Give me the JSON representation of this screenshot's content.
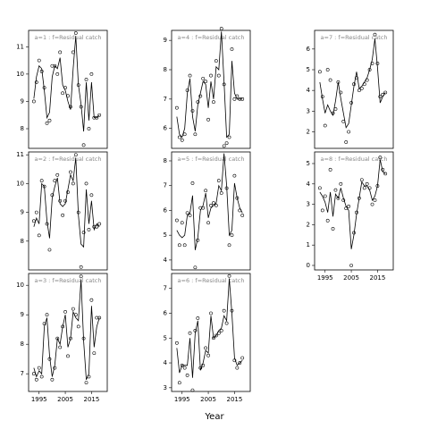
{
  "xlabel": "Year",
  "chart_data": [
    {
      "type": "scatter",
      "title": "a=1 : f=Residual catch",
      "x": [
        1993,
        1994,
        1995,
        1996,
        1997,
        1998,
        1999,
        2000,
        2001,
        2002,
        2003,
        2004,
        2005,
        2006,
        2007,
        2008,
        2009,
        2010,
        2011,
        2012,
        2013,
        2014,
        2015,
        2016,
        2017,
        2018
      ],
      "xlim": [
        1991,
        2021
      ],
      "ylim": [
        7.28,
        11.6
      ],
      "yticks": [
        8,
        9,
        10,
        11
      ],
      "series": [
        {
          "style": "points",
          "color": "#000000",
          "values": [
            9.0,
            9.7,
            10.5,
            10.1,
            9.5,
            8.2,
            8.3,
            10.3,
            10.3,
            10.0,
            10.8,
            9.3,
            9.5,
            9.2,
            8.8,
            10.8,
            11.5,
            9.6,
            8.8,
            7.4,
            9.8,
            8.0,
            10.0,
            8.4,
            8.4,
            8.5
          ]
        },
        {
          "style": "line",
          "color": "#000000",
          "values": [
            9.1,
            9.9,
            10.3,
            10.2,
            9.4,
            8.4,
            8.6,
            9.9,
            10.3,
            10.2,
            10.6,
            9.6,
            9.4,
            9.0,
            8.7,
            10.2,
            11.4,
            9.6,
            8.9,
            7.9,
            9.7,
            8.3,
            9.7,
            8.4,
            8.4,
            8.5
          ]
        }
      ]
    },
    {
      "type": "scatter",
      "title": "a=2 : f=Residual catch",
      "x": [
        1993,
        1994,
        1995,
        1996,
        1997,
        1998,
        1999,
        2000,
        2001,
        2002,
        2003,
        2004,
        2005,
        2006,
        2007,
        2008,
        2009,
        2010,
        2011,
        2012,
        2013,
        2014,
        2015,
        2016,
        2017,
        2018
      ],
      "xlim": [
        1991,
        2021
      ],
      "ylim": [
        7.0,
        11.1
      ],
      "yticks": [
        8,
        9,
        10,
        11
      ],
      "series": [
        {
          "style": "points",
          "color": "#000000",
          "values": [
            8.7,
            9.0,
            8.2,
            10.1,
            9.9,
            8.6,
            7.7,
            9.6,
            10.1,
            10.3,
            9.4,
            8.9,
            9.4,
            9.7,
            10.4,
            10.0,
            11.0,
            9.0,
            7.1,
            8.3,
            10.0,
            8.4,
            9.6,
            8.5,
            8.5,
            8.6
          ]
        },
        {
          "style": "line",
          "color": "#000000",
          "values": [
            8.5,
            8.8,
            8.6,
            10.0,
            9.9,
            8.7,
            8.1,
            9.5,
            9.9,
            10.2,
            9.3,
            9.2,
            9.3,
            9.8,
            10.3,
            10.1,
            10.9,
            8.9,
            7.9,
            7.8,
            9.8,
            8.6,
            9.4,
            8.4,
            8.6,
            8.5
          ]
        }
      ]
    },
    {
      "type": "scatter",
      "title": "a=3 : f=Residual catch",
      "x": [
        1993,
        1994,
        1995,
        1996,
        1997,
        1998,
        1999,
        2000,
        2001,
        2002,
        2003,
        2004,
        2005,
        2006,
        2007,
        2008,
        2009,
        2010,
        2011,
        2012,
        2013,
        2014,
        2015,
        2016,
        2017,
        2018
      ],
      "xlim": [
        1991,
        2021
      ],
      "xticks": [
        1995,
        2005,
        2015
      ],
      "ylim": [
        6.4,
        10.4
      ],
      "yticks": [
        7,
        8,
        9,
        10
      ],
      "series": [
        {
          "style": "points",
          "color": "#000000",
          "values": [
            7.0,
            6.8,
            7.2,
            6.9,
            8.7,
            9.0,
            7.5,
            6.8,
            7.2,
            8.2,
            7.9,
            8.6,
            9.1,
            7.6,
            8.2,
            9.2,
            9.0,
            8.6,
            10.3,
            8.2,
            6.7,
            6.9,
            9.5,
            7.7,
            8.9,
            8.9
          ]
        },
        {
          "style": "line",
          "color": "#000000",
          "values": [
            7.2,
            6.9,
            7.1,
            7.0,
            8.6,
            8.9,
            7.6,
            6.9,
            7.3,
            8.2,
            8.0,
            8.6,
            9.0,
            7.9,
            8.2,
            9.1,
            8.9,
            8.8,
            10.2,
            8.1,
            6.8,
            7.0,
            9.3,
            7.9,
            8.6,
            8.9
          ]
        }
      ]
    },
    {
      "type": "scatter",
      "title": "a=4 : f=Residual catch",
      "x": [
        1993,
        1994,
        1995,
        1996,
        1997,
        1998,
        1999,
        2000,
        2001,
        2002,
        2003,
        2004,
        2005,
        2006,
        2007,
        2008,
        2009,
        2010,
        2011,
        2012,
        2013,
        2014,
        2015,
        2016,
        2017,
        2018
      ],
      "xlim": [
        1991,
        2021
      ],
      "ylim": [
        5.32,
        9.34
      ],
      "yticks": [
        6,
        7,
        8,
        9
      ],
      "series": [
        {
          "style": "points",
          "color": "#000000",
          "values": [
            6.7,
            5.7,
            5.6,
            5.8,
            7.3,
            7.8,
            6.6,
            5.8,
            6.9,
            7.1,
            7.7,
            7.6,
            6.3,
            7.8,
            6.9,
            8.3,
            7.8,
            9.4,
            7.5,
            5.5,
            5.7,
            8.7,
            7.0,
            7.1,
            7.0,
            7.0
          ]
        },
        {
          "style": "line",
          "color": "#000000",
          "values": [
            6.4,
            5.8,
            5.7,
            6.0,
            7.2,
            7.7,
            6.4,
            5.9,
            6.8,
            7.2,
            7.6,
            7.5,
            6.7,
            7.6,
            7.0,
            8.1,
            8.0,
            9.3,
            7.6,
            5.7,
            5.8,
            8.3,
            7.2,
            7.0,
            7.0,
            7.0
          ]
        }
      ]
    },
    {
      "type": "scatter",
      "title": "a=5 : f=Residual catch",
      "x": [
        1993,
        1994,
        1995,
        1996,
        1997,
        1998,
        1999,
        2000,
        2001,
        2002,
        2003,
        2004,
        2005,
        2006,
        2007,
        2008,
        2009,
        2010,
        2011,
        2012,
        2013,
        2014,
        2015,
        2016,
        2017,
        2018
      ],
      "xlim": [
        1991,
        2021
      ],
      "ylim": [
        3.6,
        8.36
      ],
      "yticks": [
        4,
        5,
        6,
        7,
        8
      ],
      "series": [
        {
          "style": "points",
          "color": "#000000",
          "values": [
            5.6,
            4.6,
            5.5,
            4.6,
            5.9,
            5.8,
            7.1,
            3.7,
            4.8,
            6.1,
            6.1,
            6.8,
            5.5,
            6.2,
            6.3,
            6.2,
            7.2,
            6.7,
            8.6,
            6.9,
            4.6,
            5.0,
            7.4,
            6.5,
            6.0,
            5.8
          ]
        },
        {
          "style": "line",
          "color": "#000000",
          "values": [
            5.2,
            5.0,
            4.9,
            5.0,
            5.8,
            5.9,
            6.6,
            4.4,
            4.9,
            6.0,
            6.2,
            6.7,
            5.7,
            6.1,
            6.2,
            6.3,
            7.0,
            6.8,
            8.3,
            7.0,
            5.0,
            5.2,
            7.1,
            6.5,
            6.1,
            5.9
          ]
        }
      ]
    },
    {
      "type": "scatter",
      "title": "a=6 : f=Residual catch",
      "x": [
        1993,
        1994,
        1995,
        1996,
        1997,
        1998,
        1999,
        2000,
        2001,
        2002,
        2003,
        2004,
        2005,
        2006,
        2007,
        2008,
        2009,
        2010,
        2011,
        2012,
        2013,
        2014,
        2015,
        2016,
        2017,
        2018
      ],
      "xlim": [
        1991,
        2021
      ],
      "xticks": [
        1995,
        2005,
        2015
      ],
      "ylim": [
        2.85,
        7.6
      ],
      "yticks": [
        3,
        4,
        5,
        6,
        7
      ],
      "series": [
        {
          "style": "points",
          "color": "#000000",
          "values": [
            4.8,
            3.2,
            3.9,
            3.8,
            3.5,
            5.2,
            2.9,
            5.3,
            5.8,
            3.8,
            3.9,
            4.6,
            4.3,
            6.0,
            5.0,
            5.1,
            5.2,
            5.3,
            6.1,
            5.6,
            7.5,
            6.1,
            4.1,
            3.8,
            4.0,
            4.2
          ]
        },
        {
          "style": "line",
          "color": "#000000",
          "values": [
            4.6,
            3.6,
            3.9,
            3.9,
            3.9,
            5.0,
            3.4,
            5.2,
            5.7,
            3.7,
            4.0,
            4.5,
            4.4,
            5.9,
            5.0,
            5.1,
            5.3,
            5.4,
            5.9,
            5.7,
            7.4,
            6.0,
            4.2,
            3.9,
            4.0,
            4.1
          ]
        }
      ]
    },
    {
      "type": "scatter",
      "title": "a=7 : f=Residual catch",
      "x": [
        1993,
        1994,
        1995,
        1996,
        1997,
        1998,
        1999,
        2000,
        2001,
        2002,
        2003,
        2004,
        2005,
        2006,
        2007,
        2008,
        2009,
        2010,
        2011,
        2012,
        2013,
        2014,
        2015,
        2016,
        2017,
        2018
      ],
      "xlim": [
        1991,
        2021
      ],
      "ylim": [
        1.2,
        6.9
      ],
      "yticks": [
        2,
        3,
        4,
        5,
        6
      ],
      "series": [
        {
          "style": "points",
          "color": "#000000",
          "values": [
            4.9,
            3.7,
            2.3,
            5.0,
            4.5,
            2.9,
            3.1,
            4.4,
            3.9,
            2.5,
            1.5,
            2.0,
            3.4,
            4.3,
            4.6,
            4.0,
            4.1,
            4.3,
            4.5,
            5.0,
            5.3,
            6.7,
            5.3,
            3.7,
            3.8,
            3.9
          ]
        },
        {
          "style": "line",
          "color": "#000000",
          "values": [
            4.4,
            3.6,
            2.9,
            3.3,
            3.0,
            2.8,
            3.5,
            4.4,
            3.6,
            2.9,
            2.2,
            2.4,
            3.3,
            4.2,
            4.9,
            4.1,
            4.2,
            4.4,
            4.6,
            5.0,
            5.5,
            6.5,
            5.1,
            3.4,
            3.7,
            3.9
          ]
        }
      ]
    },
    {
      "type": "scatter",
      "title": "a=8 : f=Residual catch",
      "x": [
        1993,
        1994,
        1995,
        1996,
        1997,
        1998,
        1999,
        2000,
        2001,
        2002,
        2003,
        2004,
        2005,
        2006,
        2007,
        2008,
        2009,
        2010,
        2011,
        2012,
        2013,
        2014,
        2015,
        2016,
        2017,
        2018
      ],
      "xlim": [
        1991,
        2021
      ],
      "xticks": [
        1995,
        2005,
        2015
      ],
      "ylim": [
        -0.22,
        5.57
      ],
      "yticks": [
        0,
        1,
        2,
        3,
        4,
        5
      ],
      "series": [
        {
          "style": "points",
          "color": "#000000",
          "values": [
            3.8,
            2.7,
            3.4,
            2.2,
            4.7,
            1.8,
            3.7,
            3.3,
            4.0,
            3.2,
            2.8,
            2.9,
            0.0,
            1.6,
            2.6,
            3.3,
            4.2,
            3.8,
            4.0,
            3.8,
            3.0,
            3.2,
            3.9,
            5.3,
            4.7,
            4.5
          ]
        },
        {
          "style": "line",
          "color": "#000000",
          "values": [
            3.6,
            3.4,
            3.1,
            2.6,
            3.6,
            2.4,
            3.5,
            3.3,
            3.8,
            3.3,
            2.9,
            2.7,
            0.8,
            1.5,
            2.5,
            3.3,
            4.1,
            3.9,
            3.9,
            3.7,
            3.2,
            3.4,
            3.9,
            5.2,
            4.6,
            4.5
          ]
        }
      ]
    }
  ]
}
